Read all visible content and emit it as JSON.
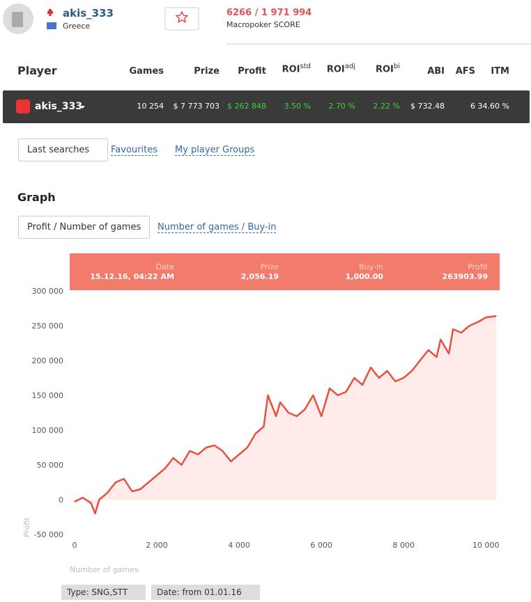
{
  "header": {
    "username": "akis_333",
    "country": "Greece",
    "score": "6266 / 1 971 994",
    "score_label": "Macropoker SCORE"
  },
  "table": {
    "columns": [
      {
        "label": "Player"
      },
      {
        "label": "Games"
      },
      {
        "label": "Prize"
      },
      {
        "label": "Profit"
      },
      {
        "label": "ROI",
        "sup": "std"
      },
      {
        "label": "ROI",
        "sup": "adj"
      },
      {
        "label": "ROI",
        "sup": "bi"
      },
      {
        "label": "ABI"
      },
      {
        "label": "AFS"
      },
      {
        "label": "ITM"
      }
    ],
    "row": [
      "akis_333",
      "10 254",
      "$ 7 773 703",
      "$ 262 848",
      "3.50 %",
      "2.70 %",
      "2.22 %",
      "$ 732.48",
      "6",
      "34.60 %"
    ]
  },
  "nav": [
    "Last searches",
    "Favourites",
    "My player Groups"
  ],
  "graph": {
    "title": "Graph",
    "tabs": [
      "Profit / Number of games",
      "Number of games / Buy-in"
    ],
    "tooltip": [
      {
        "label": "Date",
        "value": "15.12.16, 04:22 AM"
      },
      {
        "label": "Prize",
        "value": "2,056.19"
      },
      {
        "label": "Buy-in",
        "value": "1,000.00"
      },
      {
        "label": "Profit",
        "value": "263903.99"
      }
    ]
  },
  "filters": [
    "Type: SNG,STT",
    "Date: from 01.01.16"
  ],
  "chart_data": {
    "type": "line",
    "x_label": "Number of games",
    "y_label": "Profit",
    "color": "#e8503e",
    "fill": "#fdecea",
    "x": [
      0,
      200,
      400,
      500,
      600,
      800,
      1000,
      1200,
      1400,
      1600,
      1800,
      2000,
      2200,
      2400,
      2600,
      2800,
      3000,
      3200,
      3400,
      3600,
      3800,
      4000,
      4200,
      4400,
      4600,
      4700,
      4900,
      5000,
      5200,
      5400,
      5600,
      5800,
      6000,
      6200,
      6400,
      6600,
      6800,
      7000,
      7200,
      7400,
      7600,
      7800,
      8000,
      8200,
      8400,
      8600,
      8800,
      8900,
      9100,
      9200,
      9400,
      9600,
      9800,
      10000,
      10254
    ],
    "values": [
      -3000,
      3000,
      -5000,
      -20000,
      0,
      10000,
      25000,
      30000,
      12000,
      15000,
      25000,
      35000,
      45000,
      60000,
      50000,
      70000,
      65000,
      75000,
      78000,
      70000,
      55000,
      65000,
      75000,
      95000,
      105000,
      150000,
      120000,
      140000,
      125000,
      120000,
      130000,
      150000,
      120000,
      160000,
      150000,
      155000,
      175000,
      165000,
      190000,
      175000,
      185000,
      170000,
      175000,
      185000,
      200000,
      215000,
      205000,
      230000,
      210000,
      245000,
      240000,
      250000,
      255000,
      262000,
      263904
    ],
    "xlim": [
      0,
      10300
    ],
    "ylim": [
      -50000,
      300000
    ],
    "xticks": [
      0,
      {
        "value": 2000,
        "label": "2 000"
      },
      {
        "value": 4000,
        "label": "4 000"
      },
      {
        "value": 6000,
        "label": "6 000"
      },
      {
        "value": 8000,
        "label": "8 000"
      },
      {
        "value": 10000,
        "label": "10 000"
      }
    ],
    "yticks": [
      {
        "value": -50000,
        "label": "-50 000"
      },
      0,
      {
        "value": 50000,
        "label": "50 000"
      },
      {
        "value": 100000,
        "label": "100 000"
      },
      {
        "value": 150000,
        "label": "150 000"
      },
      {
        "value": 200000,
        "label": "200 000"
      },
      {
        "value": 250000,
        "label": "250 000"
      },
      {
        "value": 300000,
        "label": "300 000"
      }
    ]
  }
}
